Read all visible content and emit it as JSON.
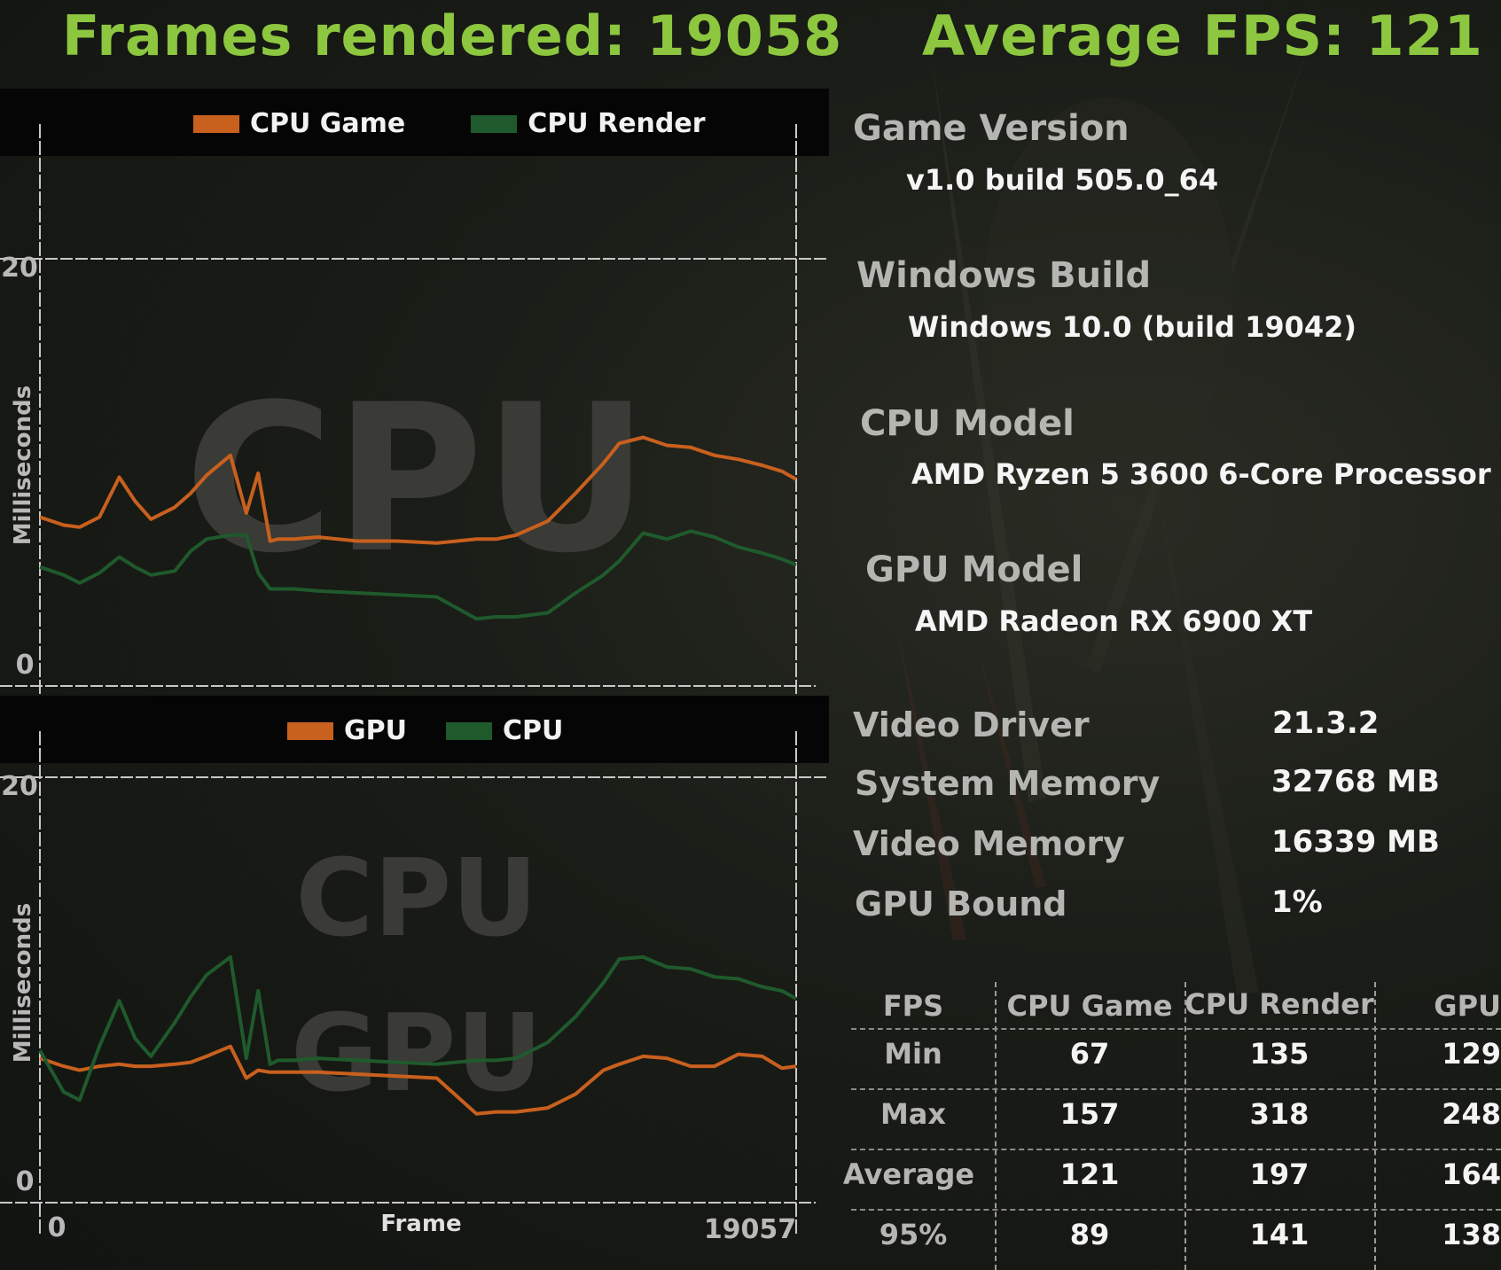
{
  "header": {
    "frames_rendered": "Frames rendered: 19058",
    "average_fps": "Average FPS: 121"
  },
  "cpu_chart": {
    "watermark": "CPU",
    "legend": [
      {
        "label": "CPU Game",
        "color": "#c8601e"
      },
      {
        "label": "CPU Render",
        "color": "#1f5a2c"
      }
    ],
    "ylabel": "Milliseconds",
    "xlabel": "Frame",
    "y_ticks": [
      "20",
      "0"
    ],
    "x_ticks": [
      "0",
      "19057"
    ]
  },
  "gpu_chart": {
    "watermark_top": "CPU",
    "watermark_bottom": "GPU",
    "legend": [
      {
        "label": "GPU",
        "color": "#c8601e"
      },
      {
        "label": "CPU",
        "color": "#1f5a2c"
      }
    ],
    "ylabel": "Milliseconds",
    "xlabel": "Frame",
    "y_ticks": [
      "20",
      "0"
    ],
    "x_ticks": [
      "0",
      "19057"
    ]
  },
  "chart_data": [
    {
      "type": "line",
      "title": "",
      "xlabel": "Frame",
      "ylabel": "Milliseconds",
      "xlim": [
        0,
        19057
      ],
      "ylim": [
        0,
        20
      ],
      "legend": "top",
      "x": [
        0,
        600,
        1000,
        1500,
        2000,
        2400,
        2800,
        3400,
        3800,
        4200,
        4800,
        5200,
        5500,
        5800,
        6000,
        6200,
        6400,
        7000,
        8000,
        9000,
        10000,
        11000,
        11500,
        12000,
        12800,
        13500,
        14200,
        14600,
        15200,
        15800,
        16400,
        17000,
        17600,
        18200,
        18700,
        19057
      ],
      "series": [
        {
          "name": "CPU Game",
          "values": [
            7.4,
            7.0,
            6.9,
            7.4,
            9.4,
            8.2,
            7.3,
            7.9,
            8.6,
            9.5,
            10.5,
            7.6,
            9.6,
            6.2,
            6.3,
            6.3,
            6.3,
            6.4,
            6.2,
            6.2,
            6.1,
            6.3,
            6.3,
            6.5,
            7.2,
            8.6,
            10.1,
            11.1,
            11.4,
            11.0,
            10.9,
            10.5,
            10.3,
            10.0,
            9.7,
            9.3
          ]
        },
        {
          "name": "CPU Render",
          "values": [
            4.9,
            4.5,
            4.1,
            4.6,
            5.4,
            4.9,
            4.5,
            4.7,
            5.7,
            6.3,
            6.5,
            6.5,
            4.6,
            3.8,
            3.8,
            3.8,
            3.8,
            3.7,
            3.6,
            3.5,
            3.4,
            2.3,
            2.4,
            2.4,
            2.6,
            3.6,
            4.5,
            5.2,
            6.6,
            6.3,
            6.7,
            6.4,
            5.9,
            5.6,
            5.3,
            5.0
          ]
        }
      ]
    },
    {
      "type": "line",
      "title": "",
      "xlabel": "Frame",
      "ylabel": "Milliseconds",
      "xlim": [
        0,
        19057
      ],
      "ylim": [
        0,
        20
      ],
      "legend": "top",
      "x": [
        0,
        600,
        1000,
        1500,
        2000,
        2400,
        2800,
        3400,
        3800,
        4200,
        4800,
        5200,
        5500,
        5800,
        6000,
        6200,
        6400,
        7000,
        8000,
        9000,
        10000,
        11000,
        11500,
        12000,
        12800,
        13500,
        14200,
        14600,
        15200,
        15800,
        16400,
        17000,
        17600,
        18200,
        18700,
        19057
      ],
      "series": [
        {
          "name": "GPU",
          "values": [
            6.2,
            5.8,
            5.6,
            5.8,
            5.9,
            5.8,
            5.8,
            5.9,
            6.0,
            6.3,
            6.8,
            5.2,
            5.6,
            5.5,
            5.5,
            5.5,
            5.5,
            5.5,
            5.4,
            5.3,
            5.2,
            3.4,
            3.5,
            3.5,
            3.7,
            4.4,
            5.6,
            5.9,
            6.3,
            6.2,
            5.8,
            5.8,
            6.4,
            6.3,
            5.7,
            5.8
          ]
        },
        {
          "name": "CPU",
          "values": [
            6.6,
            4.5,
            4.1,
            6.8,
            9.1,
            7.2,
            6.3,
            8.0,
            9.3,
            10.4,
            11.3,
            6.2,
            9.6,
            5.9,
            6.1,
            6.1,
            6.1,
            6.2,
            6.1,
            6.0,
            5.9,
            6.1,
            6.1,
            6.2,
            7.0,
            8.3,
            10.0,
            11.2,
            11.3,
            10.8,
            10.7,
            10.3,
            10.2,
            9.8,
            9.6,
            9.2
          ]
        }
      ]
    }
  ],
  "info": {
    "game_version_label": "Game Version",
    "game_version_value": "v1.0 build 505.0_64",
    "windows_build_label": "Windows Build",
    "windows_build_value": "Windows 10.0 (build 19042)",
    "cpu_model_label": "CPU Model",
    "cpu_model_value": "AMD Ryzen 5 3600 6-Core Processor",
    "gpu_model_label": "GPU Model",
    "gpu_model_value": "AMD Radeon RX 6900 XT"
  },
  "specs": [
    {
      "label": "Video Driver",
      "value": "21.3.2"
    },
    {
      "label": "System Memory",
      "value": "32768 MB"
    },
    {
      "label": "Video Memory",
      "value": "16339 MB"
    },
    {
      "label": "GPU Bound",
      "value": "1%"
    }
  ],
  "fps_table": {
    "headers": [
      "FPS",
      "CPU Game",
      "CPU Render",
      "GPU"
    ],
    "rows": [
      {
        "label": "Min",
        "values": [
          "67",
          "135",
          "129"
        ]
      },
      {
        "label": "Max",
        "values": [
          "157",
          "318",
          "248"
        ]
      },
      {
        "label": "Average",
        "values": [
          "121",
          "197",
          "164"
        ]
      },
      {
        "label": "95%",
        "values": [
          "89",
          "141",
          "138"
        ]
      }
    ]
  },
  "colors": {
    "title_green": "#8dc63f",
    "line_orange": "#c8601e",
    "line_green": "#1f5a2c"
  }
}
